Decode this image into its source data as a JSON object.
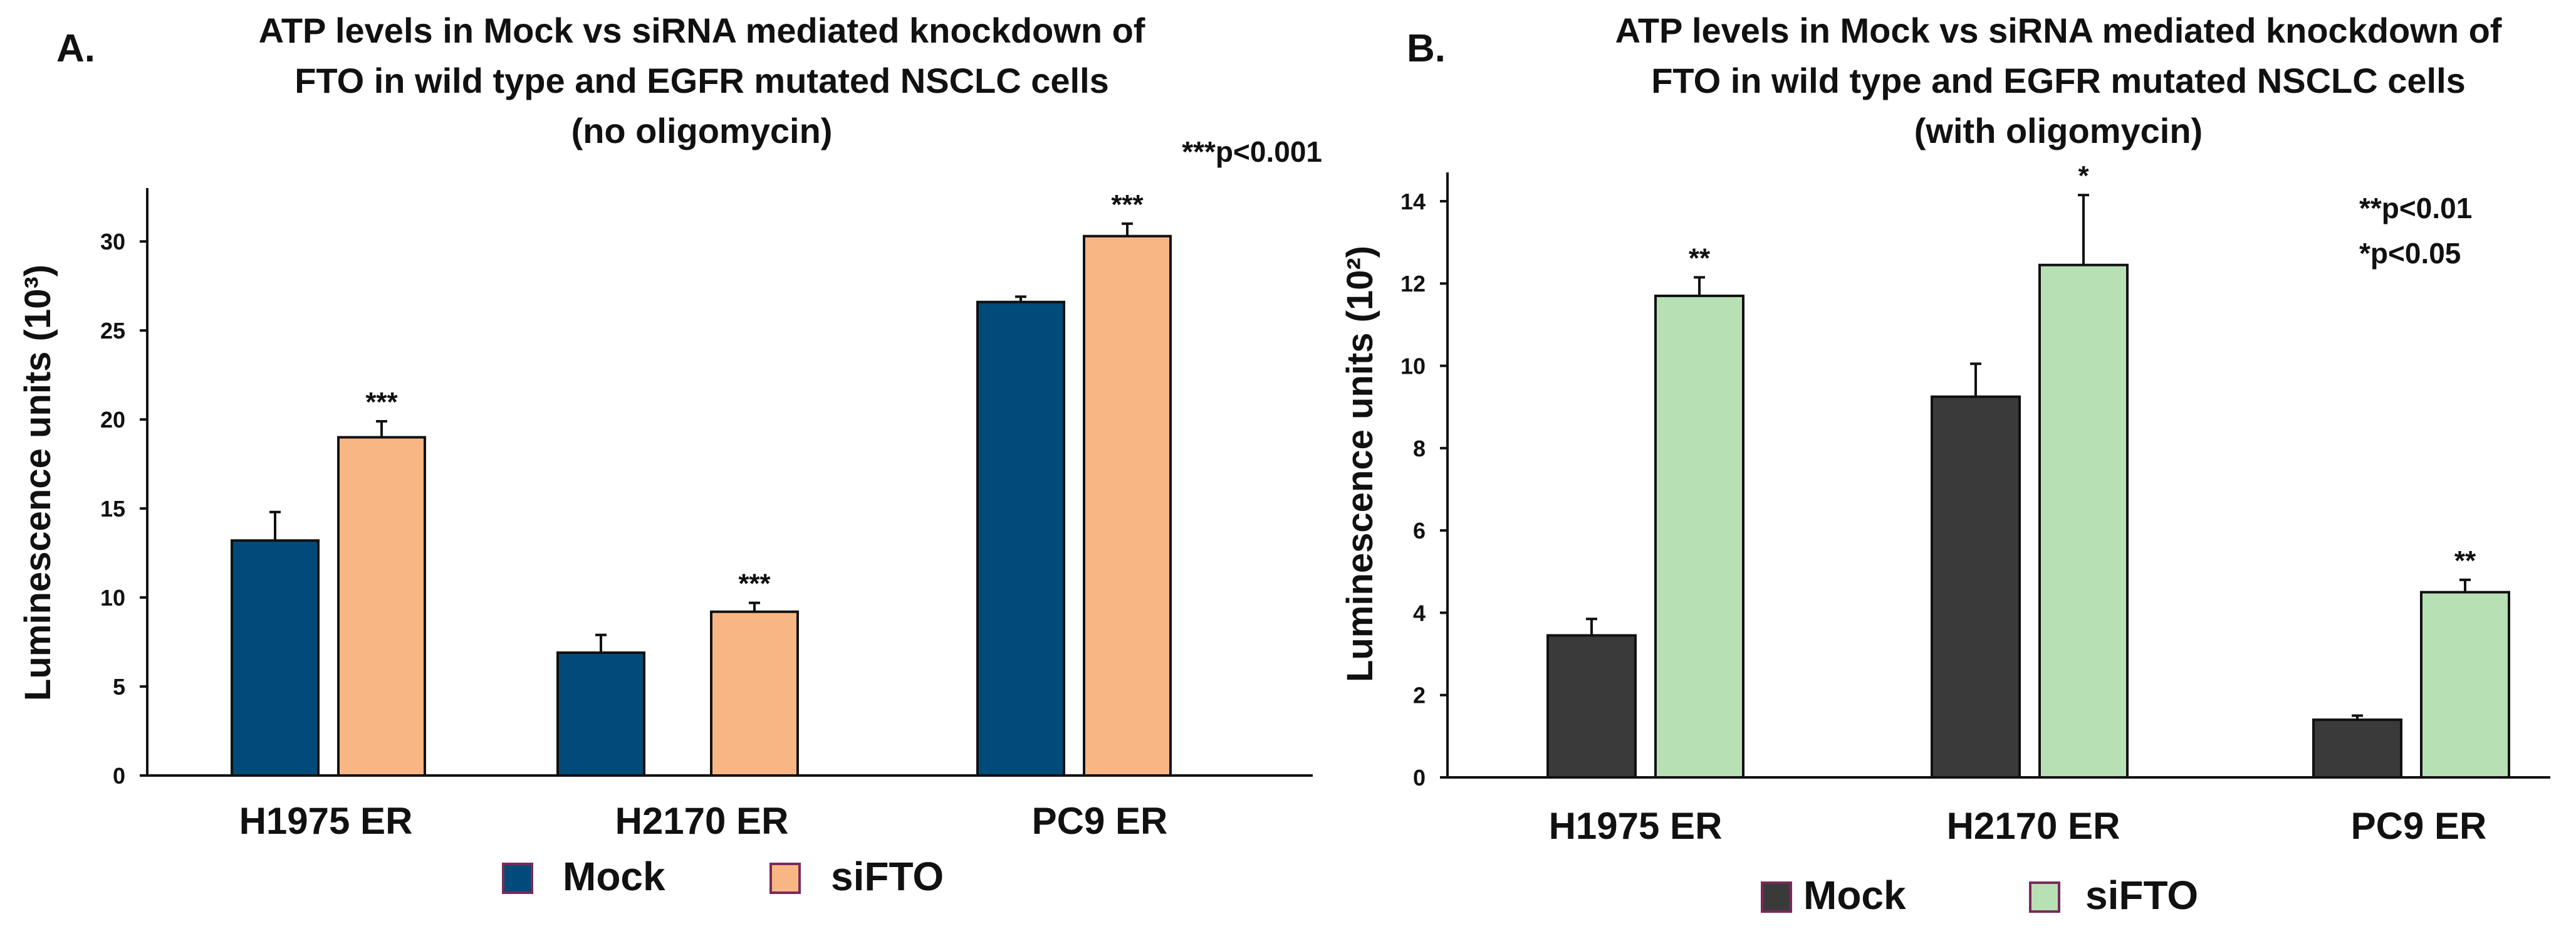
{
  "chart_data": [
    {
      "type": "bar",
      "panel": "A.",
      "title_lines": [
        "ATP levels in Mock vs siRNA mediated knockdown of",
        "FTO in wild type and EGFR mutated NSCLC cells",
        "(no oligomycin)"
      ],
      "xlabel": "",
      "ylabel": "Luminescence units (10³)",
      "ylim": [
        0,
        33
      ],
      "yticks": [
        0,
        5,
        10,
        15,
        20,
        25,
        30
      ],
      "grid": false,
      "categories": [
        "H1975 ER",
        "H2170 ER",
        "PC9 ER"
      ],
      "series": [
        {
          "name": "Mock",
          "color": "#004b7a",
          "values": [
            13.2,
            6.9,
            26.6
          ],
          "errors": [
            1.6,
            1.0,
            0.3
          ]
        },
        {
          "name": "siFTO",
          "color": "#f9b685",
          "values": [
            19.0,
            9.2,
            30.3
          ],
          "errors": [
            0.9,
            0.5,
            0.7
          ]
        }
      ],
      "significance": [
        "***",
        "***",
        "***"
      ],
      "note_lines": [
        "***p<0.001"
      ],
      "legend_position": "bottom"
    },
    {
      "type": "bar",
      "panel": "B.",
      "title_lines": [
        "ATP levels in Mock vs siRNA mediated knockdown of",
        "FTO in wild type and EGFR mutated NSCLC cells",
        "(with oligomycin)"
      ],
      "xlabel": "",
      "ylabel": "Luminescence units (10²)",
      "ylim": [
        0,
        14.7
      ],
      "yticks": [
        0,
        2,
        4,
        6,
        8,
        10,
        12,
        14
      ],
      "grid": false,
      "categories": [
        "H1975 ER",
        "H2170 ER",
        "PC9 ER"
      ],
      "series": [
        {
          "name": "Mock",
          "color": "#3a3a3a",
          "values": [
            3.45,
            9.25,
            1.4
          ],
          "errors": [
            0.4,
            0.8,
            0.1
          ]
        },
        {
          "name": "siFTO",
          "color": "#b8e0b5",
          "values": [
            11.7,
            12.45,
            4.5
          ],
          "errors": [
            0.45,
            1.7,
            0.3
          ]
        }
      ],
      "significance": [
        "**",
        "*",
        "**"
      ],
      "note_lines": [
        "**p<0.01",
        "*p<0.05"
      ],
      "legend_position": "bottom"
    }
  ]
}
